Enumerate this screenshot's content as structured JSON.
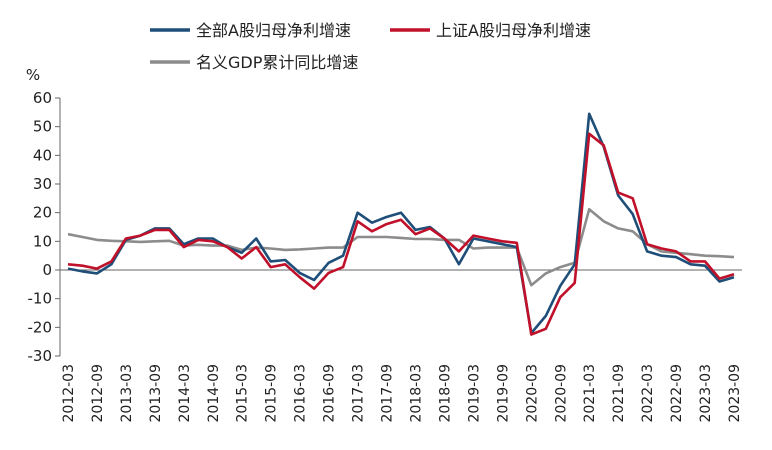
{
  "chart_data": {
    "type": "line",
    "unit": "%",
    "ylim": [
      -30,
      60
    ],
    "yticks": [
      60,
      50,
      40,
      30,
      20,
      10,
      0,
      -10,
      -20,
      -30
    ],
    "grid": false,
    "legend_position": "top",
    "x": [
      "2012-03",
      "2012-06",
      "2012-09",
      "2012-12",
      "2013-03",
      "2013-06",
      "2013-09",
      "2013-12",
      "2014-03",
      "2014-06",
      "2014-09",
      "2014-12",
      "2015-03",
      "2015-06",
      "2015-09",
      "2015-12",
      "2016-03",
      "2016-06",
      "2016-09",
      "2016-12",
      "2017-03",
      "2017-06",
      "2017-09",
      "2017-12",
      "2018-03",
      "2018-06",
      "2018-09",
      "2018-12",
      "2019-03",
      "2019-06",
      "2019-09",
      "2019-12",
      "2020-03",
      "2020-06",
      "2020-09",
      "2020-12",
      "2021-03",
      "2021-06",
      "2021-09",
      "2021-12",
      "2022-03",
      "2022-06",
      "2022-09",
      "2022-12",
      "2023-03",
      "2023-06",
      "2023-09"
    ],
    "xticks": [
      "2012-03",
      "2012-09",
      "2013-03",
      "2013-09",
      "2014-03",
      "2014-09",
      "2015-03",
      "2015-09",
      "2016-03",
      "2016-09",
      "2017-03",
      "2017-09",
      "2018-03",
      "2018-09",
      "2019-03",
      "2019-09",
      "2020-03",
      "2020-09",
      "2021-03",
      "2021-09",
      "2022-03",
      "2022-09",
      "2023-03",
      "2023-09"
    ],
    "series": [
      {
        "name": "全部A股归母净利增速",
        "color": "#1f4e79",
        "values": [
          0.5,
          -0.5,
          -1.2,
          2.0,
          10.5,
          12.0,
          14.5,
          14.5,
          9.0,
          11.0,
          11.0,
          8.0,
          6.0,
          11.0,
          3.0,
          3.5,
          -1.0,
          -3.5,
          2.5,
          5.0,
          20.0,
          16.5,
          18.5,
          20.0,
          14.0,
          15.0,
          11.0,
          2.0,
          11.0,
          10.0,
          9.0,
          8.0,
          -22.0,
          -16.0,
          -5.5,
          2.0,
          54.5,
          43.0,
          26.0,
          19.5,
          6.5,
          5.0,
          4.5,
          2.0,
          1.5,
          -4.0,
          -2.5
        ]
      },
      {
        "name": "上证A股归母净利增速",
        "color": "#c0102a",
        "values": [
          2.0,
          1.5,
          0.5,
          3.0,
          11.0,
          12.0,
          14.0,
          14.0,
          8.0,
          10.5,
          10.0,
          8.0,
          4.0,
          8.0,
          1.0,
          2.0,
          -2.5,
          -6.5,
          -1.0,
          1.0,
          17.0,
          13.5,
          16.0,
          17.5,
          12.5,
          14.5,
          11.0,
          6.5,
          12.0,
          11.0,
          10.0,
          9.5,
          -22.5,
          -20.5,
          -9.5,
          -4.5,
          47.5,
          43.5,
          27.0,
          25.0,
          9.0,
          7.5,
          6.5,
          3.0,
          3.0,
          -3.0,
          -1.5
        ]
      },
      {
        "name": "名义GDP累计同比增速",
        "color": "#8c8c8c",
        "values": [
          12.5,
          11.5,
          10.5,
          10.2,
          10.0,
          9.8,
          10.0,
          10.2,
          8.5,
          8.8,
          8.5,
          8.5,
          7.0,
          7.8,
          7.5,
          7.0,
          7.2,
          7.5,
          7.8,
          7.8,
          11.5,
          11.5,
          11.5,
          11.2,
          10.8,
          10.8,
          10.5,
          10.5,
          7.5,
          7.8,
          7.8,
          7.8,
          -5.3,
          -1.2,
          1.0,
          2.5,
          21.2,
          17.0,
          14.5,
          13.5,
          9.0,
          6.5,
          6.0,
          5.5,
          5.0,
          4.8,
          4.5
        ]
      }
    ]
  }
}
